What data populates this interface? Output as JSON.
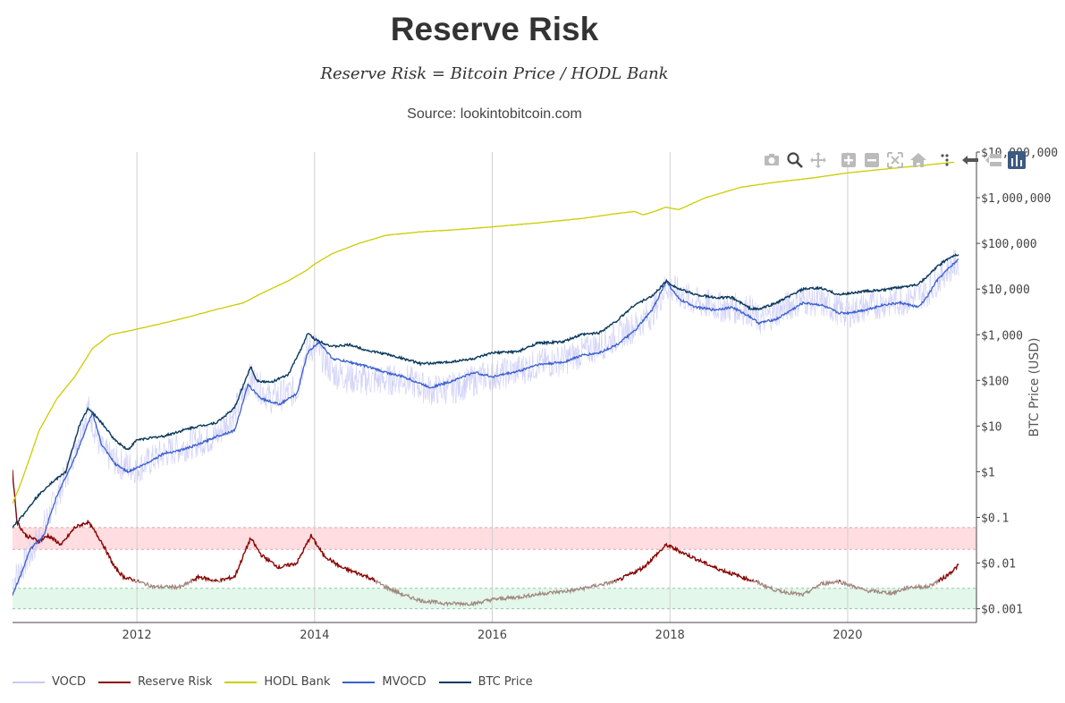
{
  "header": {
    "title": "Reserve Risk",
    "subtitle": "Reserve Risk = Bitcoin Price / HODL Bank",
    "source": "Source: lookintobitcoin.com"
  },
  "modebar": [
    {
      "name": "camera-icon",
      "label": "Download plot as png"
    },
    {
      "name": "zoom-icon",
      "label": "Zoom"
    },
    {
      "name": "pan-icon",
      "label": "Pan"
    },
    {
      "name": "zoom-in-icon",
      "label": "Zoom in"
    },
    {
      "name": "zoom-out-icon",
      "label": "Zoom out"
    },
    {
      "name": "autoscale-icon",
      "label": "Autoscale"
    },
    {
      "name": "home-icon",
      "label": "Reset axes"
    },
    {
      "name": "spike-lines-icon",
      "label": "Toggle Spike Lines"
    },
    {
      "name": "hover-closest-icon",
      "label": "Show closest data on hover"
    },
    {
      "name": "hover-compare-icon",
      "label": "Compare data on hover"
    },
    {
      "name": "plotly-logo-icon",
      "label": "Produced with Plotly"
    }
  ],
  "colors": {
    "vocd": "#c9c9f7",
    "reserve_risk_dark": "#8b0000",
    "reserve_risk_faded": "#a1887f",
    "hodl_bank": "#cccc00",
    "mvocd": "#3a5fcd",
    "btc_price": "#0b3a5c",
    "red_band": "#ffdde0",
    "green_band": "#e3f7ea",
    "grid": "#d0d0d0"
  },
  "chart_data": {
    "type": "line",
    "title": "Reserve Risk",
    "ylabel": "BTC Price (USD)",
    "yscale": "log",
    "ylim": [
      0.0005,
      10000000
    ],
    "xlim": [
      2010.6,
      2021.45
    ],
    "x_ticks": [
      {
        "value": 2012,
        "label": "2012"
      },
      {
        "value": 2014,
        "label": "2014"
      },
      {
        "value": 2016,
        "label": "2016"
      },
      {
        "value": 2018,
        "label": "2018"
      },
      {
        "value": 2020,
        "label": "2020"
      }
    ],
    "y_ticks": [
      {
        "value": 10000000,
        "label": "$10,000,000"
      },
      {
        "value": 1000000,
        "label": "$1,000,000"
      },
      {
        "value": 100000,
        "label": "$100,000"
      },
      {
        "value": 10000,
        "label": "$10,000"
      },
      {
        "value": 1000,
        "label": "$1,000"
      },
      {
        "value": 100,
        "label": "$100"
      },
      {
        "value": 10,
        "label": "$10"
      },
      {
        "value": 1,
        "label": "$1"
      },
      {
        "value": 0.1,
        "label": "$0.1"
      },
      {
        "value": 0.01,
        "label": "$0.01"
      },
      {
        "value": 0.001,
        "label": "$0.001"
      }
    ],
    "bands": [
      {
        "name": "high-risk-band",
        "low": 0.02,
        "high": 0.06,
        "color": "red"
      },
      {
        "name": "low-risk-band",
        "low": 0.001,
        "high": 0.0028,
        "color": "green"
      }
    ],
    "series": [
      {
        "name": "VOCD",
        "key": "vocd",
        "style": "noise",
        "x": [
          2010.6,
          2010.8,
          2011.0,
          2011.2,
          2011.45,
          2011.6,
          2011.8,
          2012.0,
          2012.3,
          2012.6,
          2012.9,
          2013.1,
          2013.28,
          2013.5,
          2013.8,
          2013.9,
          2014.0,
          2014.2,
          2014.5,
          2014.8,
          2015.0,
          2015.3,
          2015.6,
          2015.9,
          2016.2,
          2016.5,
          2016.8,
          2017.0,
          2017.3,
          2017.6,
          2017.8,
          2017.96,
          2018.1,
          2018.3,
          2018.6,
          2018.9,
          2019.0,
          2019.3,
          2019.5,
          2019.7,
          2019.9,
          2020.0,
          2020.2,
          2020.4,
          2020.7,
          2020.9,
          2021.1,
          2021.25
        ],
        "y": [
          0.004,
          0.015,
          0.1,
          0.8,
          25,
          3,
          1.5,
          1.2,
          2.5,
          4,
          6,
          20,
          120,
          40,
          60,
          400,
          600,
          150,
          100,
          100,
          110,
          60,
          70,
          120,
          150,
          220,
          280,
          400,
          700,
          1500,
          3000,
          12000,
          8000,
          5000,
          4000,
          3500,
          2000,
          4000,
          6000,
          5000,
          3500,
          3000,
          4000,
          5000,
          6000,
          9000,
          25000,
          40000
        ]
      },
      {
        "name": "Reserve Risk",
        "key": "reserve_risk",
        "style": "reserve",
        "x": [
          2010.6,
          2010.65,
          2010.75,
          2010.9,
          2011.0,
          2011.15,
          2011.3,
          2011.45,
          2011.6,
          2011.75,
          2011.85,
          2012.0,
          2012.2,
          2012.5,
          2012.7,
          2012.9,
          2013.1,
          2013.28,
          2013.4,
          2013.6,
          2013.8,
          2013.96,
          2014.1,
          2014.3,
          2014.6,
          2014.8,
          2015.0,
          2015.2,
          2015.5,
          2015.8,
          2016.0,
          2016.3,
          2016.6,
          2016.9,
          2017.1,
          2017.4,
          2017.7,
          2017.96,
          2018.2,
          2018.5,
          2018.8,
          2018.95,
          2019.2,
          2019.5,
          2019.7,
          2019.9,
          2020.2,
          2020.5,
          2020.7,
          2020.9,
          2021.1,
          2021.25
        ],
        "y": [
          1.0,
          0.08,
          0.04,
          0.03,
          0.04,
          0.025,
          0.06,
          0.08,
          0.03,
          0.008,
          0.005,
          0.004,
          0.003,
          0.003,
          0.005,
          0.004,
          0.005,
          0.035,
          0.015,
          0.008,
          0.01,
          0.04,
          0.015,
          0.008,
          0.005,
          0.003,
          0.002,
          0.0015,
          0.0013,
          0.0013,
          0.0016,
          0.0018,
          0.0022,
          0.0025,
          0.003,
          0.004,
          0.008,
          0.025,
          0.015,
          0.008,
          0.005,
          0.004,
          0.0025,
          0.002,
          0.0035,
          0.004,
          0.0025,
          0.0022,
          0.003,
          0.003,
          0.005,
          0.009
        ]
      },
      {
        "name": "HODL Bank",
        "key": "hodl_bank",
        "style": "line",
        "x": [
          2010.6,
          2010.7,
          2010.9,
          2011.1,
          2011.3,
          2011.5,
          2011.7,
          2011.9,
          2012.3,
          2012.6,
          2012.9,
          2013.2,
          2013.4,
          2013.7,
          2013.9,
          2014.0,
          2014.2,
          2014.5,
          2014.8,
          2015.2,
          2015.6,
          2016.0,
          2016.5,
          2017.0,
          2017.4,
          2017.6,
          2017.7,
          2017.85,
          2017.95,
          2018.1,
          2018.4,
          2018.8,
          2019.2,
          2019.6,
          2020.0,
          2020.4,
          2020.8,
          2021.2
        ],
        "y": [
          0.2,
          0.6,
          8,
          40,
          120,
          500,
          1000,
          1200,
          1800,
          2500,
          3600,
          5000,
          8000,
          15000,
          25000,
          35000,
          60000,
          100000,
          150000,
          180000,
          200000,
          230000,
          280000,
          350000,
          450000,
          500000,
          420000,
          520000,
          620000,
          550000,
          1000000,
          1700000,
          2200000,
          2700000,
          3500000,
          4200000,
          5000000,
          6000000
        ]
      },
      {
        "name": "MVOCD",
        "key": "mvocd",
        "style": "line",
        "x": [
          2010.6,
          2010.7,
          2010.8,
          2010.95,
          2011.1,
          2011.3,
          2011.5,
          2011.6,
          2011.75,
          2011.9,
          2012.1,
          2012.3,
          2012.5,
          2012.7,
          2012.9,
          2013.1,
          2013.25,
          2013.4,
          2013.6,
          2013.8,
          2013.92,
          2014.05,
          2014.2,
          2014.4,
          2014.6,
          2014.8,
          2015.0,
          2015.3,
          2015.5,
          2015.8,
          2016.0,
          2016.3,
          2016.5,
          2016.8,
          2017.0,
          2017.2,
          2017.4,
          2017.6,
          2017.8,
          2017.96,
          2018.1,
          2018.3,
          2018.5,
          2018.7,
          2018.9,
          2019.0,
          2019.2,
          2019.5,
          2019.7,
          2019.9,
          2020.0,
          2020.2,
          2020.4,
          2020.6,
          2020.8,
          2020.9,
          2021.0,
          2021.15,
          2021.25
        ],
        "y": [
          0.002,
          0.006,
          0.02,
          0.04,
          0.3,
          2.0,
          20,
          4,
          1.5,
          1.0,
          1.5,
          2.5,
          3,
          4,
          6,
          8,
          80,
          40,
          30,
          50,
          400,
          700,
          300,
          250,
          200,
          150,
          120,
          70,
          90,
          150,
          120,
          160,
          220,
          250,
          350,
          400,
          600,
          1200,
          3500,
          15000,
          6000,
          4000,
          3500,
          4000,
          2500,
          1800,
          2200,
          5000,
          4500,
          3000,
          3000,
          3500,
          4500,
          5000,
          4000,
          7000,
          15000,
          30000,
          45000
        ]
      },
      {
        "name": "BTC Price",
        "key": "btc_price",
        "style": "line",
        "x": [
          2010.6,
          2010.62,
          2010.7,
          2010.85,
          2011.0,
          2011.2,
          2011.35,
          2011.45,
          2011.6,
          2011.75,
          2011.9,
          2012.0,
          2012.3,
          2012.6,
          2012.9,
          2013.1,
          2013.28,
          2013.35,
          2013.5,
          2013.7,
          2013.9,
          2013.92,
          2014.0,
          2014.2,
          2014.4,
          2014.6,
          2014.8,
          2015.0,
          2015.2,
          2015.5,
          2015.8,
          2016.0,
          2016.3,
          2016.5,
          2016.8,
          2017.0,
          2017.2,
          2017.4,
          2017.6,
          2017.8,
          2017.96,
          2018.1,
          2018.3,
          2018.5,
          2018.7,
          2018.9,
          2019.0,
          2019.2,
          2019.5,
          2019.7,
          2019.9,
          2020.0,
          2020.2,
          2020.4,
          2020.6,
          2020.8,
          2020.9,
          2021.0,
          2021.15,
          2021.25
        ],
        "y": [
          0.06,
          0.07,
          0.1,
          0.25,
          0.5,
          1,
          10,
          25,
          12,
          5,
          3,
          5,
          6,
          9,
          12,
          25,
          200,
          100,
          90,
          130,
          800,
          1100,
          800,
          550,
          600,
          450,
          380,
          300,
          230,
          250,
          300,
          400,
          430,
          650,
          700,
          1000,
          1100,
          2000,
          4500,
          7000,
          15000,
          10000,
          7500,
          6500,
          6500,
          3800,
          3600,
          5000,
          10000,
          10500,
          7500,
          8000,
          9000,
          9500,
          11000,
          13000,
          19000,
          30000,
          50000,
          58000
        ]
      }
    ]
  },
  "legend": [
    {
      "label": "VOCD",
      "key": "vocd"
    },
    {
      "label": "Reserve Risk",
      "key": "reserve_risk"
    },
    {
      "label": "HODL Bank",
      "key": "hodl_bank"
    },
    {
      "label": "MVOCD",
      "key": "mvocd"
    },
    {
      "label": "BTC Price",
      "key": "btc_price"
    }
  ]
}
